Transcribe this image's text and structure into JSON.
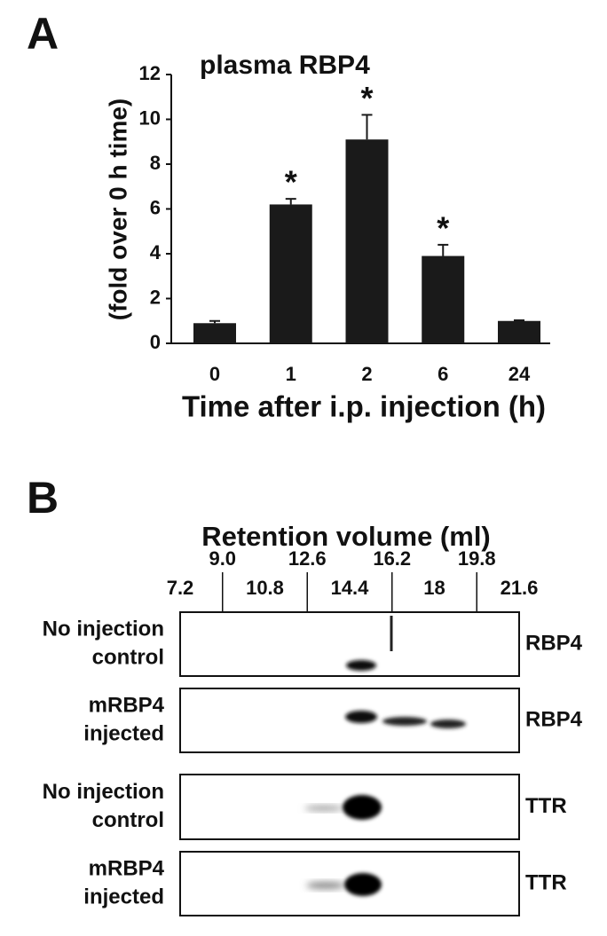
{
  "chart_data": {
    "type": "bar",
    "panel": "A",
    "title": "plasma RBP4",
    "y_label": "(fold over 0 h time)",
    "x_label": "Time after i.p. injection (h)",
    "categories": [
      "0",
      "1",
      "2",
      "6",
      "24"
    ],
    "values": [
      0.9,
      6.2,
      9.1,
      3.9,
      1.0
    ],
    "errors": [
      0.1,
      0.25,
      1.1,
      0.5,
      0.03
    ],
    "significance": [
      null,
      "*",
      "*",
      "*",
      null
    ],
    "color": "#1a1a1a",
    "ylim": [
      0,
      12
    ],
    "yticks": [
      0,
      2,
      4,
      6,
      8,
      10,
      12
    ]
  },
  "panel_b": {
    "panel": "B",
    "axis_title": "Retention volume (ml)",
    "xlim": [
      7.2,
      21.6
    ],
    "xticks": [
      7.2,
      {
        "value": 9,
        "label": "9.0"
      },
      10.8,
      12.6,
      14.4,
      16.2,
      18,
      19.8,
      21.6
    ],
    "rows": [
      {
        "sample": [
          "No injection",
          "control"
        ],
        "protein": "RBP4"
      },
      {
        "sample": [
          "mRBP4",
          "injected"
        ],
        "protein": "RBP4"
      },
      {
        "sample": [
          "No injection",
          "control"
        ],
        "protein": "TTR"
      },
      {
        "sample": [
          "mRBP4",
          "injected"
        ],
        "protein": "TTR"
      }
    ]
  }
}
